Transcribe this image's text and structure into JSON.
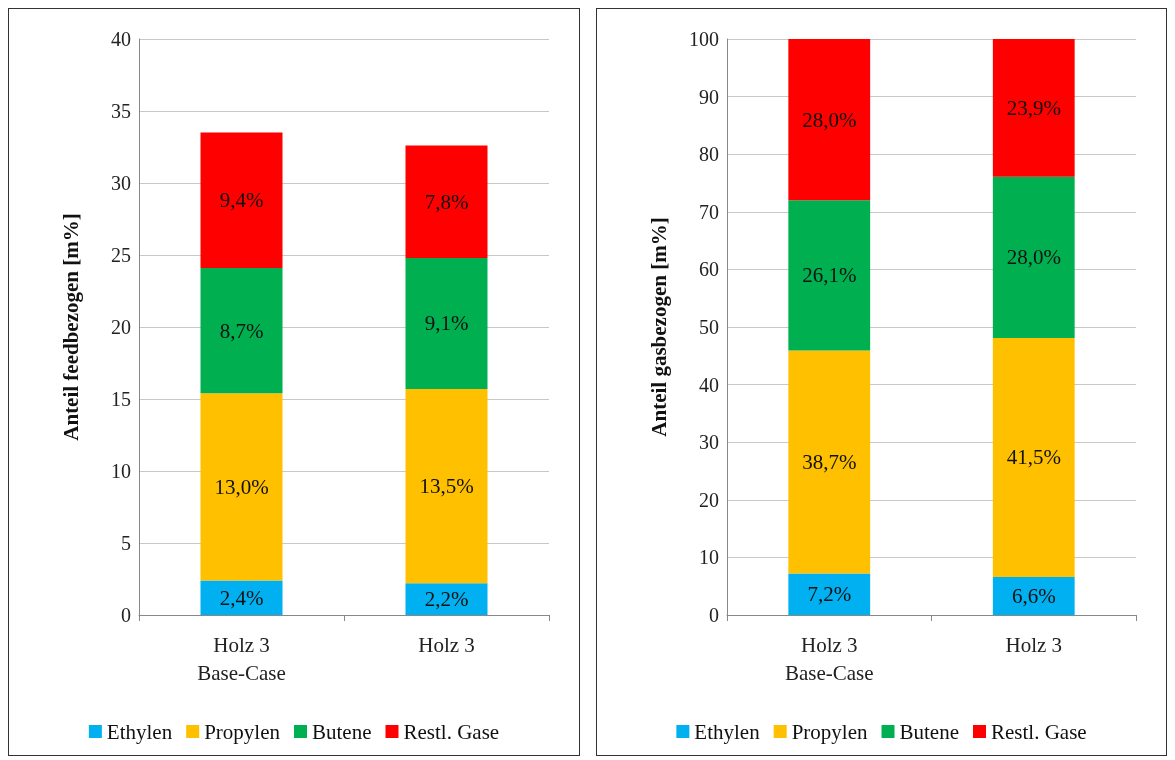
{
  "chart_data": [
    {
      "type": "bar",
      "stacked": true,
      "ylabel": "Anteil feedbezogen [m%]",
      "categories": [
        "Holz 3\nBase-Case",
        "Holz 3"
      ],
      "ylim": [
        0,
        40
      ],
      "yticks": [
        0,
        5,
        10,
        15,
        20,
        25,
        30,
        35,
        40
      ],
      "grid": "y",
      "legend": "bottom",
      "series": [
        {
          "name": "Ethylen",
          "color": "#00b0f0",
          "values": [
            2.4,
            2.2
          ],
          "value_labels": [
            "2,4%",
            "2,2%"
          ]
        },
        {
          "name": "Propylen",
          "color": "#ffc000",
          "values": [
            13.0,
            13.5
          ],
          "value_labels": [
            "13,0%",
            "13,5%"
          ]
        },
        {
          "name": "Butene",
          "color": "#00b050",
          "values": [
            8.7,
            9.1
          ],
          "value_labels": [
            "8,7%",
            "9,1%"
          ]
        },
        {
          "name": "Restl. Gase",
          "color": "#ff0000",
          "values": [
            9.4,
            7.8
          ],
          "value_labels": [
            "9,4%",
            "7,8%"
          ]
        }
      ]
    },
    {
      "type": "bar",
      "stacked": true,
      "ylabel": "Anteil gasbezogen [m%]",
      "categories": [
        "Holz 3\nBase-Case",
        "Holz 3"
      ],
      "ylim": [
        0,
        100
      ],
      "yticks": [
        0,
        10,
        20,
        30,
        40,
        50,
        60,
        70,
        80,
        90,
        100
      ],
      "grid": "y",
      "legend": "bottom",
      "series": [
        {
          "name": "Ethylen",
          "color": "#00b0f0",
          "values": [
            7.2,
            6.6
          ],
          "value_labels": [
            "7,2%",
            "6,6%"
          ]
        },
        {
          "name": "Propylen",
          "color": "#ffc000",
          "values": [
            38.7,
            41.5
          ],
          "value_labels": [
            "38,7%",
            "41,5%"
          ]
        },
        {
          "name": "Butene",
          "color": "#00b050",
          "values": [
            26.1,
            28.0
          ],
          "value_labels": [
            "26,1%",
            "28,0%"
          ]
        },
        {
          "name": "Restl. Gase",
          "color": "#ff0000",
          "values": [
            28.0,
            23.9
          ],
          "value_labels": [
            "28,0%",
            "23,9%"
          ]
        }
      ]
    }
  ]
}
